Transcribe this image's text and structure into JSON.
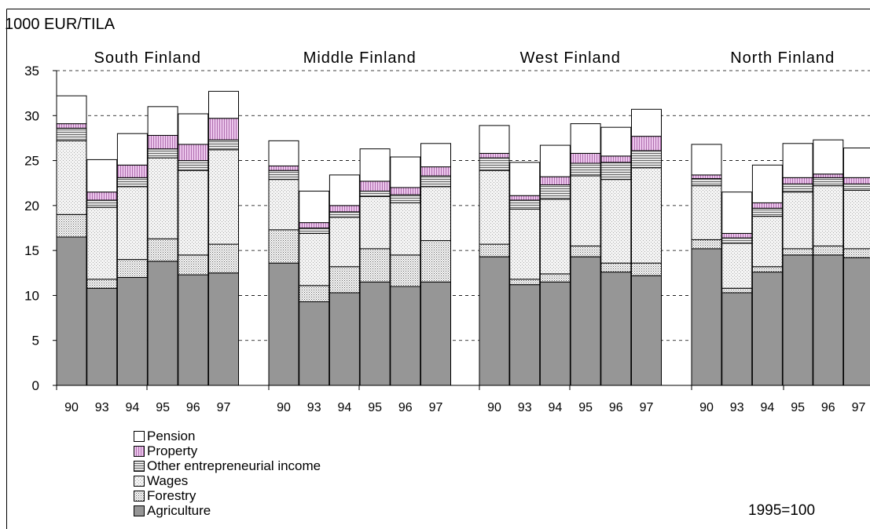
{
  "chart_data": {
    "type": "bar",
    "stacked": true,
    "ylabel": "1000 EUR/TILA",
    "ylim": [
      0,
      35
    ],
    "yticks": [
      0,
      5,
      10,
      15,
      20,
      25,
      30,
      35
    ],
    "grid": "dashed horizontal",
    "note": "1995=100",
    "legend_position": "bottom-left",
    "categories": [
      "90",
      "93",
      "94",
      "95",
      "96",
      "97"
    ],
    "series": [
      {
        "name": "Agriculture",
        "color": "#969696",
        "pattern": "solid"
      },
      {
        "name": "Forestry",
        "color": "#ffffff",
        "pattern": "dense-dots"
      },
      {
        "name": "Wages",
        "color": "#f2f2f2",
        "pattern": "fine-dots"
      },
      {
        "name": "Other entrepreneurial income",
        "color": "#d9d9d9",
        "pattern": "horizontal-lines"
      },
      {
        "name": "Property",
        "color": "#e6bfe6",
        "pattern": "vertical-lines"
      },
      {
        "name": "Pension",
        "color": "#ffffff",
        "pattern": "solid"
      }
    ],
    "groups": [
      {
        "name": "South Finland",
        "bars": [
          [
            16.5,
            2.5,
            8.2,
            1.4,
            0.5,
            3.1
          ],
          [
            10.8,
            1.0,
            8.0,
            0.8,
            0.9,
            3.6
          ],
          [
            12.0,
            2.0,
            8.1,
            1.0,
            1.4,
            3.5
          ],
          [
            13.8,
            2.5,
            9.0,
            1.0,
            1.5,
            3.2
          ],
          [
            12.3,
            2.2,
            9.4,
            1.1,
            1.8,
            3.4
          ],
          [
            12.5,
            3.2,
            10.5,
            1.1,
            2.4,
            3.0
          ]
        ]
      },
      {
        "name": "Middle Finland",
        "bars": [
          [
            13.6,
            3.7,
            5.6,
            1.0,
            0.5,
            2.8
          ],
          [
            9.3,
            1.8,
            5.8,
            0.6,
            0.6,
            3.5
          ],
          [
            10.3,
            2.9,
            5.5,
            0.6,
            0.7,
            3.4
          ],
          [
            11.5,
            3.7,
            5.8,
            0.6,
            1.1,
            3.6
          ],
          [
            11.0,
            3.5,
            5.8,
            0.9,
            0.8,
            3.4
          ],
          [
            11.5,
            4.6,
            6.0,
            1.2,
            1.0,
            2.6
          ]
        ]
      },
      {
        "name": "West Finland",
        "bars": [
          [
            14.3,
            1.4,
            8.2,
            1.4,
            0.5,
            3.1
          ],
          [
            11.2,
            0.6,
            7.8,
            1.0,
            0.5,
            3.7
          ],
          [
            11.5,
            0.9,
            8.3,
            1.6,
            0.9,
            3.5
          ],
          [
            14.3,
            1.2,
            7.8,
            1.4,
            1.1,
            3.3
          ],
          [
            12.6,
            1.0,
            9.3,
            1.9,
            0.7,
            3.2
          ],
          [
            12.2,
            1.4,
            10.6,
            1.9,
            1.6,
            3.0
          ]
        ]
      },
      {
        "name": "North Finland",
        "bars": [
          [
            15.2,
            1.0,
            6.0,
            0.8,
            0.4,
            3.4
          ],
          [
            10.3,
            0.5,
            5.0,
            0.6,
            0.5,
            4.6
          ],
          [
            12.6,
            0.6,
            5.6,
            0.9,
            0.6,
            4.2
          ],
          [
            14.5,
            0.7,
            6.3,
            0.9,
            0.7,
            3.8
          ],
          [
            14.5,
            1.0,
            6.7,
            0.9,
            0.4,
            3.8
          ],
          [
            14.2,
            1.0,
            6.5,
            0.7,
            0.7,
            3.3
          ]
        ]
      }
    ]
  }
}
